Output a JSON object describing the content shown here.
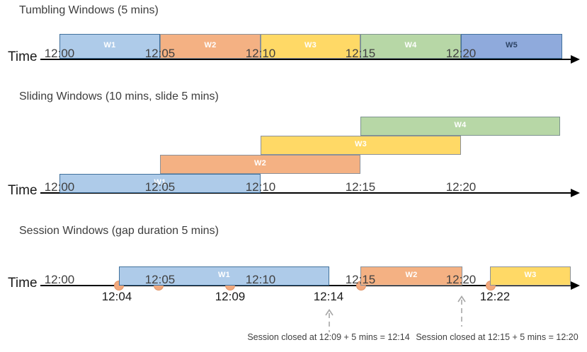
{
  "palette": {
    "blue": {
      "fill": "#AECBE9",
      "border": "#41719C",
      "text": "#FFFFFF"
    },
    "orange": {
      "fill": "#F4B183",
      "border": "#8B9199",
      "text": "#FFFFFF"
    },
    "yellow": {
      "fill": "#FFD966",
      "border": "#8B9199",
      "text": "#FFFFFF"
    },
    "green": {
      "fill": "#B7D7A6",
      "border": "#7E9490",
      "text": "#FFFFFF"
    },
    "darkblue": {
      "fill": "#8FAADC",
      "border": "#41719C",
      "text": "#2E4466"
    }
  },
  "event_dot_color": {
    "fill": "#F2A97E",
    "border": "#E09467"
  },
  "arrow_color": "#A6A6A6",
  "sections": [
    {
      "id": "tumbling",
      "title": "Tumbling Windows (5 mins)",
      "time_axis_label": "Time",
      "tick_labels": [
        "12:00",
        "12:05",
        "12:10",
        "12:15",
        "12:20"
      ],
      "windows": [
        {
          "label": "W1",
          "start": "12:00",
          "end": "12:05",
          "color": "blue"
        },
        {
          "label": "W2",
          "start": "12:05",
          "end": "12:10",
          "color": "orange"
        },
        {
          "label": "W3",
          "start": "12:10",
          "end": "12:15",
          "color": "yellow"
        },
        {
          "label": "W4",
          "start": "12:15",
          "end": "12:20",
          "color": "green"
        },
        {
          "label": "W5",
          "start": "12:20",
          "end": "",
          "color": "darkblue"
        }
      ]
    },
    {
      "id": "sliding",
      "title": "Sliding Windows (10 mins, slide 5 mins)",
      "time_axis_label": "Time",
      "tick_labels": [
        "12:00",
        "12:05",
        "12:10",
        "12:15",
        "12:20"
      ],
      "windows": [
        {
          "label": "W1",
          "start": "12:00",
          "end": "12:10",
          "color": "blue"
        },
        {
          "label": "W2",
          "start": "12:05",
          "end": "12:15",
          "color": "orange"
        },
        {
          "label": "W3",
          "start": "12:10",
          "end": "12:20",
          "color": "yellow"
        },
        {
          "label": "W4",
          "start": "12:15",
          "end": "",
          "color": "green"
        }
      ]
    },
    {
      "id": "session",
      "title": "Session Windows (gap duration 5 mins)",
      "time_axis_label": "Time",
      "tick_labels": [
        "12:00",
        "12:05",
        "12:10",
        "12:15",
        "12:20"
      ],
      "windows": [
        {
          "label": "W1",
          "start": "12:04",
          "end": "12:14",
          "color": "blue"
        },
        {
          "label": "W2",
          "start": "12:15",
          "end": "12:20",
          "color": "orange"
        },
        {
          "label": "W3",
          "start": "12:22",
          "end": "",
          "color": "yellow"
        }
      ],
      "event_dot_count": 5,
      "below_axis_labels": [
        "12:04",
        "12:09",
        "12:14",
        "12:22"
      ],
      "annotations": [
        {
          "text": "Session closed at 12:09 + 5 mins = 12:14"
        },
        {
          "text": "Session closed at 12:15 + 5 mins = 12:20"
        }
      ]
    }
  ]
}
